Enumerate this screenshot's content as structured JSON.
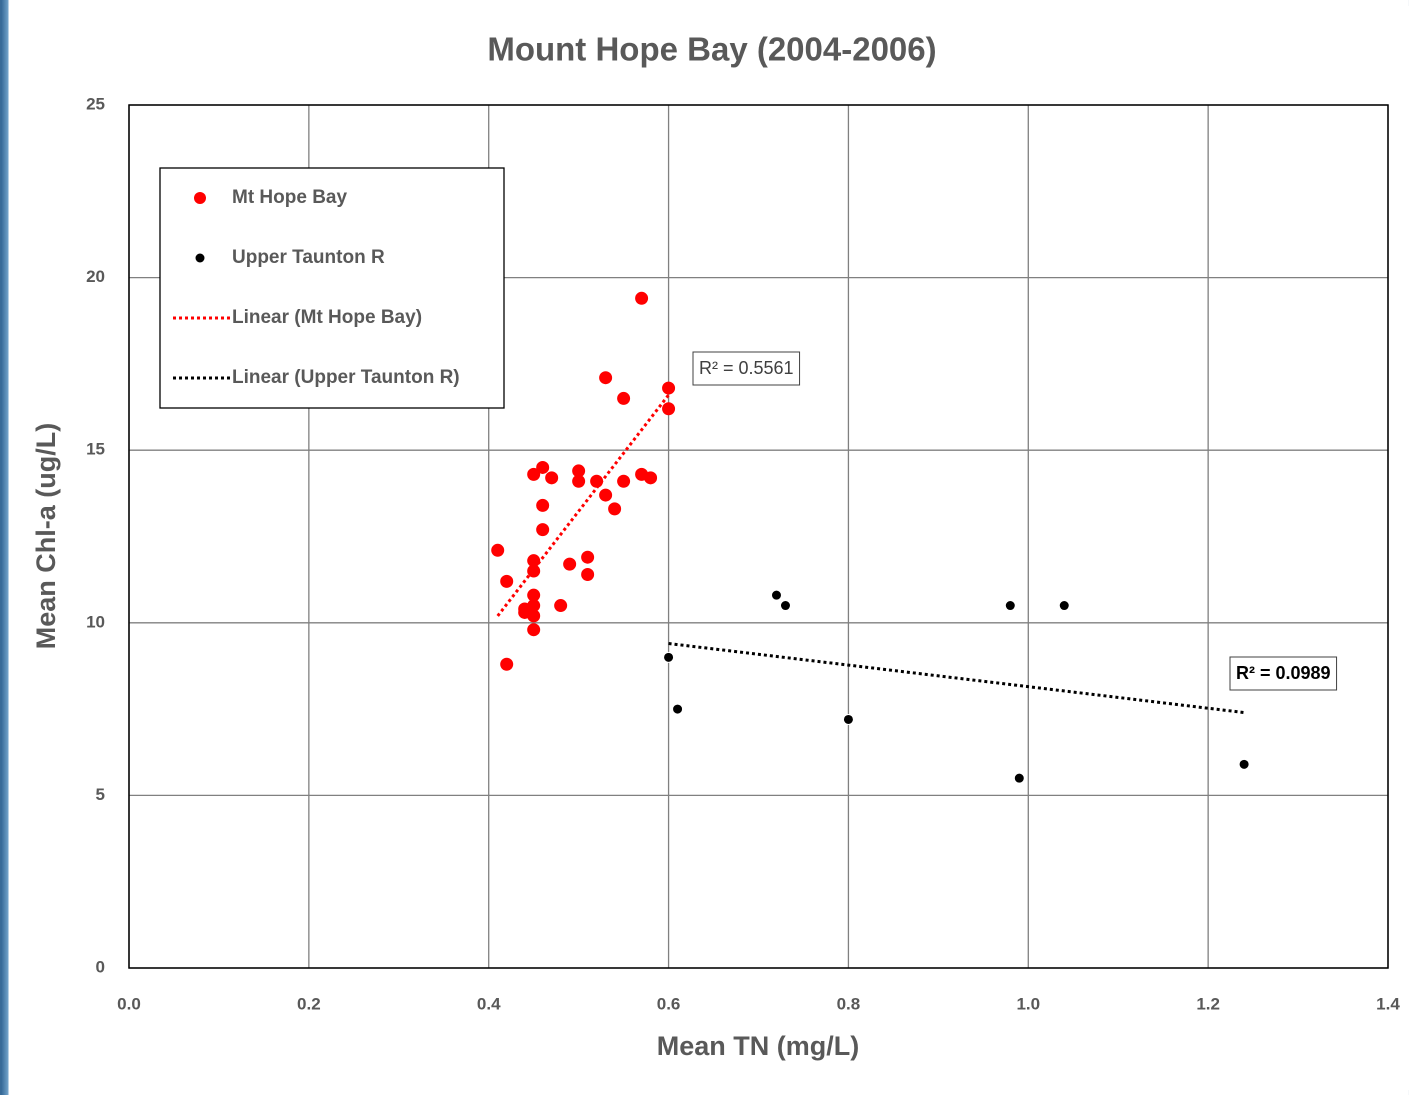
{
  "chart_data": {
    "type": "scatter",
    "title": "Mount Hope Bay (2004-2006)",
    "xlabel": "Mean TN (mg/L)",
    "ylabel": "Mean Chl-a (ug/L)",
    "xlim": [
      0,
      1.4
    ],
    "ylim": [
      0,
      25
    ],
    "xticks": [
      {
        "value": 0,
        "label": "0.0"
      },
      0.2,
      0.4,
      0.6,
      0.8,
      {
        "value": 1,
        "label": "1.0"
      },
      1.2,
      1.4
    ],
    "yticks": [
      0,
      5,
      10,
      15,
      20,
      25
    ],
    "grid": true,
    "series": [
      {
        "name": "Mt Hope Bay",
        "color": "#ff0000",
        "x": [
          0.41,
          0.42,
          0.42,
          0.44,
          0.44,
          0.45,
          0.45,
          0.45,
          0.45,
          0.45,
          0.45,
          0.45,
          0.46,
          0.46,
          0.46,
          0.47,
          0.48,
          0.49,
          0.5,
          0.5,
          0.51,
          0.51,
          0.52,
          0.53,
          0.53,
          0.54,
          0.55,
          0.55,
          0.57,
          0.57,
          0.58,
          0.6,
          0.6
        ],
        "values": [
          12.1,
          11.2,
          8.8,
          10.4,
          10.3,
          10.5,
          10.2,
          9.8,
          10.8,
          11.8,
          11.5,
          14.3,
          14.5,
          13.4,
          12.7,
          14.2,
          10.5,
          11.7,
          14.4,
          14.1,
          11.9,
          11.4,
          14.1,
          17.1,
          13.7,
          13.3,
          16.5,
          14.1,
          19.4,
          14.3,
          14.2,
          16.8,
          16.2
        ],
        "trendline": {
          "name": "Linear (Mt Hope Bay)",
          "x": [
            0.41,
            0.6
          ],
          "values": [
            10.2,
            16.6
          ],
          "r2_label": "R² = 0.5561"
        }
      },
      {
        "name": "Upper Taunton R",
        "color": "#000000",
        "x": [
          0.6,
          0.61,
          0.72,
          0.73,
          0.8,
          0.98,
          0.99,
          1.04,
          1.24
        ],
        "values": [
          9.0,
          7.5,
          10.8,
          10.5,
          7.2,
          10.5,
          5.5,
          10.5,
          5.9
        ],
        "trendline": {
          "name": "Linear (Upper Taunton R)",
          "x": [
            0.6,
            1.24
          ],
          "values": [
            9.4,
            7.4
          ],
          "r2_label": "R² = 0.0989"
        }
      }
    ]
  }
}
